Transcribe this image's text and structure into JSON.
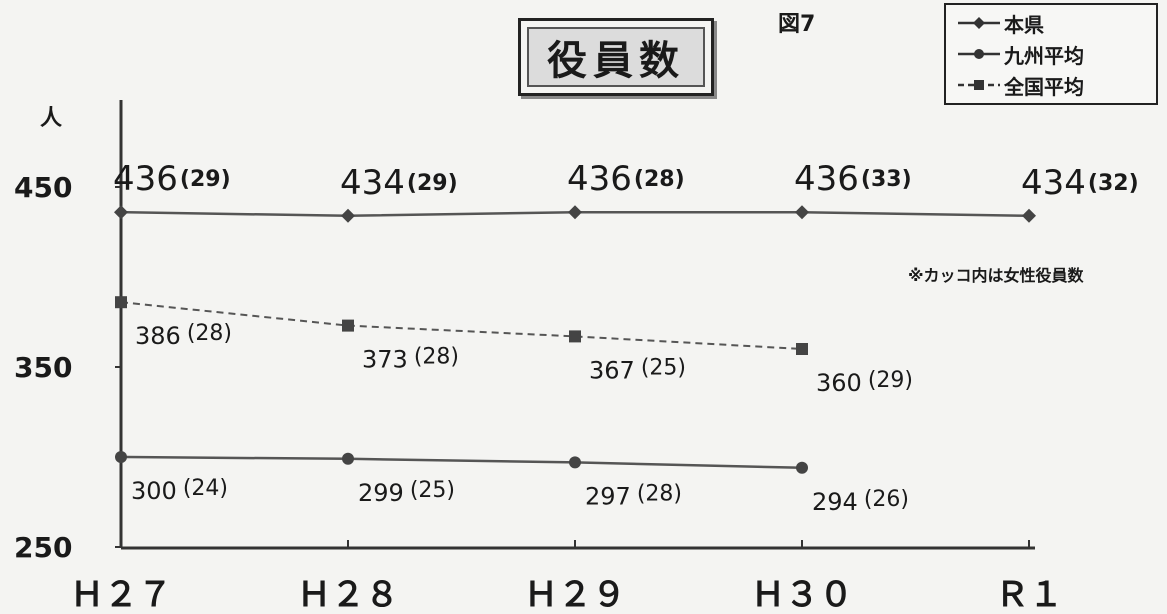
{
  "figure_label": "図7",
  "note": "※カッコ内は女性役員数",
  "chart_data": {
    "type": "line",
    "title": "役員数",
    "ylabel": "人",
    "categories": [
      "H27",
      "H28",
      "H29",
      "H30",
      "R1"
    ],
    "category_display": [
      "Ｈ２７",
      "Ｈ２８",
      "Ｈ２９",
      "Ｈ３０",
      "Ｒ１"
    ],
    "y_ticks": [
      250,
      350,
      450
    ],
    "ylim": [
      250,
      450
    ],
    "grid": false,
    "legend_position": "top-right",
    "series": [
      {
        "name": "本県",
        "values": [
          436,
          434,
          436,
          436,
          434
        ],
        "female": [
          29,
          29,
          28,
          33,
          32
        ],
        "style": "solid",
        "marker": "diamond",
        "color": "#555555"
      },
      {
        "name": "九州平均",
        "values": [
          300,
          299,
          297,
          294,
          null
        ],
        "female": [
          24,
          25,
          28,
          26,
          null
        ],
        "style": "solid",
        "marker": "circle",
        "color": "#555555"
      },
      {
        "name": "全国平均",
        "values": [
          386,
          373,
          367,
          360,
          null
        ],
        "female": [
          28,
          28,
          25,
          29,
          null
        ],
        "style": "dashed",
        "marker": "square",
        "color": "#555555"
      }
    ]
  }
}
